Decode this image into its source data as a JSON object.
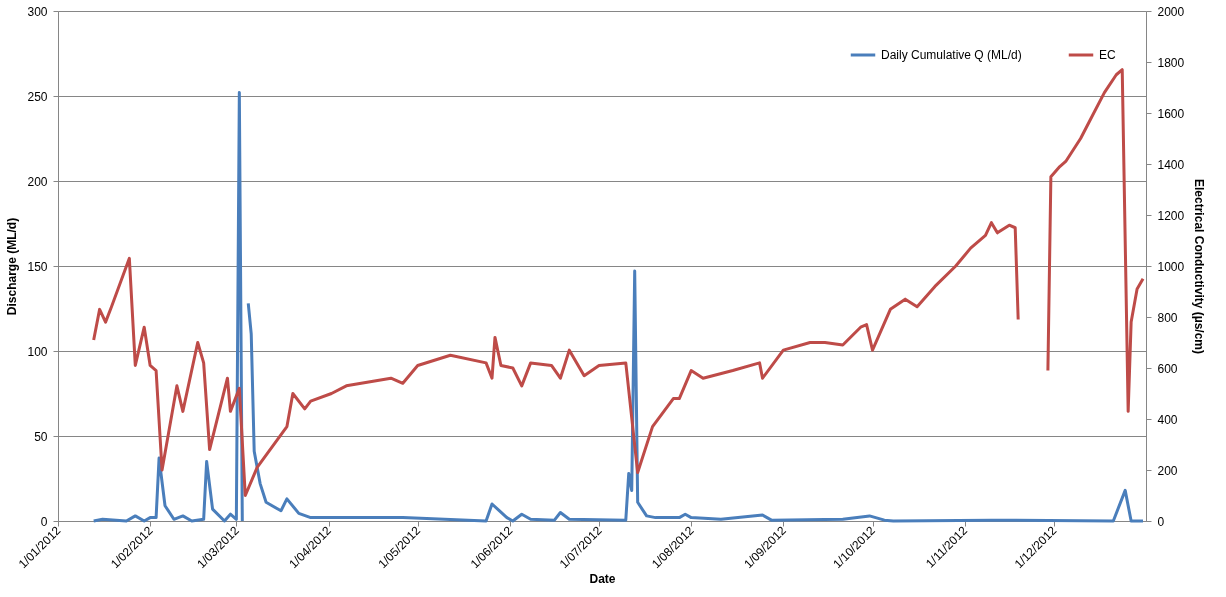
{
  "chart_data": {
    "type": "line",
    "xlabel": "Date",
    "ylabel": "Discharge (ML/d)",
    "y2label": "Electrical Conductivity (µs/cm)",
    "xlim": [
      "2012-01-01",
      "2013-01-01"
    ],
    "xticks": [
      {
        "value": "2012-01-01",
        "label": "1/01/2012"
      },
      {
        "value": "2012-02-01",
        "label": "1/02/2012"
      },
      {
        "value": "2012-03-01",
        "label": "1/03/2012"
      },
      {
        "value": "2012-04-01",
        "label": "1/04/2012"
      },
      {
        "value": "2012-05-01",
        "label": "1/05/2012"
      },
      {
        "value": "2012-06-01",
        "label": "1/06/2012"
      },
      {
        "value": "2012-07-01",
        "label": "1/07/2012"
      },
      {
        "value": "2012-08-01",
        "label": "1/08/2012"
      },
      {
        "value": "2012-09-01",
        "label": "1/09/2012"
      },
      {
        "value": "2012-10-01",
        "label": "1/10/2012"
      },
      {
        "value": "2012-11-01",
        "label": "1/11/2012"
      },
      {
        "value": "2012-12-01",
        "label": "1/12/2012"
      }
    ],
    "ylim": [
      0,
      300
    ],
    "yticks": [
      0,
      50,
      100,
      150,
      200,
      250,
      300
    ],
    "y2lim": [
      0,
      2000
    ],
    "y2ticks": [
      0,
      200,
      400,
      600,
      800,
      1000,
      1200,
      1400,
      1600,
      1800,
      2000
    ],
    "grid": "y",
    "legend": "top right",
    "series": [
      {
        "name": "Daily Cumulative Q (ML/d)",
        "color": "#4a7ebb",
        "x": [
          "2012-01-13",
          "2012-01-16",
          "2012-01-24",
          "2012-01-27",
          "2012-01-30",
          "2012-02-01",
          "2012-02-03",
          "2012-02-04",
          "2012-02-06",
          "2012-02-09",
          "2012-02-12",
          "2012-02-15",
          "2012-02-19",
          "2012-02-20",
          "2012-02-22",
          "2012-02-26",
          "2012-02-28",
          "2012-03-01",
          "2012-03-02",
          "2012-03-03",
          "2012-03-04",
          "2012-03-05",
          "2012-03-06",
          "2012-03-07",
          "2012-03-09",
          "2012-03-11",
          "2012-03-16",
          "2012-03-18",
          "2012-03-22",
          "2012-03-26",
          "2012-04-02",
          "2012-04-26",
          "2012-05-04",
          "2012-05-24",
          "2012-05-26",
          "2012-05-31",
          "2012-06-02",
          "2012-06-05",
          "2012-06-08",
          "2012-06-16",
          "2012-06-18",
          "2012-06-21",
          "2012-07-10",
          "2012-07-11",
          "2012-07-12",
          "2012-07-13",
          "2012-07-14",
          "2012-07-17",
          "2012-07-20",
          "2012-07-28",
          "2012-07-30",
          "2012-08-01",
          "2012-08-11",
          "2012-08-25",
          "2012-08-28",
          "2012-09-21",
          "2012-09-30",
          "2012-10-05",
          "2012-10-08",
          "2012-11-10",
          "2012-12-21",
          "2012-12-25",
          "2012-12-27",
          "2012-12-31"
        ],
        "values": [
          0,
          1,
          0,
          3,
          0,
          2,
          2,
          37,
          9,
          1,
          3,
          0,
          1,
          35,
          7,
          0,
          4,
          1,
          252,
          0,
          null,
          128,
          110,
          41,
          22,
          11,
          6,
          13,
          4.5,
          2,
          2,
          2,
          1.5,
          0,
          10,
          2,
          0,
          4,
          1,
          0.5,
          5,
          1,
          0.5,
          28,
          18,
          147,
          11,
          3,
          2,
          2,
          4,
          2,
          1,
          3.5,
          0.5,
          1,
          3,
          0.5,
          0,
          0.5,
          0,
          18,
          0,
          0
        ]
      },
      {
        "name": "EC",
        "color": "#be4b48",
        "axis": "y2",
        "x": [
          "2012-01-13",
          "2012-01-15",
          "2012-01-17",
          "2012-01-19",
          "2012-01-25",
          "2012-01-27",
          "2012-01-30",
          "2012-02-01",
          "2012-02-03",
          "2012-02-05",
          "2012-02-10",
          "2012-02-12",
          "2012-02-17",
          "2012-02-19",
          "2012-02-21",
          "2012-02-27",
          "2012-02-28",
          "2012-03-02",
          "2012-03-04",
          "2012-03-08",
          "2012-03-18",
          "2012-03-20",
          "2012-03-24",
          "2012-03-26",
          "2012-04-02",
          "2012-04-07",
          "2012-04-22",
          "2012-04-26",
          "2012-05-01",
          "2012-05-12",
          "2012-05-24",
          "2012-05-26",
          "2012-05-27",
          "2012-05-29",
          "2012-06-02",
          "2012-06-05",
          "2012-06-08",
          "2012-06-15",
          "2012-06-18",
          "2012-06-21",
          "2012-06-26",
          "2012-07-01",
          "2012-07-10",
          "2012-07-14",
          "2012-07-19",
          "2012-07-26",
          "2012-07-28",
          "2012-08-01",
          "2012-08-05",
          "2012-08-15",
          "2012-08-24",
          "2012-08-25",
          "2012-09-01",
          "2012-09-10",
          "2012-09-15",
          "2012-09-21",
          "2012-09-27",
          "2012-09-29",
          "2012-10-01",
          "2012-10-07",
          "2012-10-12",
          "2012-10-16",
          "2012-10-22",
          "2012-10-29",
          "2012-11-03",
          "2012-11-08",
          "2012-11-10",
          "2012-11-12",
          "2012-11-16",
          "2012-11-18",
          "2012-11-19",
          "2012-11-24",
          "2012-11-29",
          "2012-11-30",
          "2012-12-03",
          "2012-12-05",
          "2012-12-10",
          "2012-12-14",
          "2012-12-18",
          "2012-12-22",
          "2012-12-24",
          "2012-12-26",
          "2012-12-27",
          "2012-12-29",
          "2012-12-31"
        ],
        "values": [
          710,
          830,
          780,
          840,
          1030,
          610,
          760,
          610,
          590,
          200,
          530,
          430,
          700,
          620,
          280,
          560,
          430,
          520,
          100,
          210,
          370,
          500,
          440,
          470,
          500,
          530,
          560,
          540,
          610,
          650,
          620,
          560,
          720,
          610,
          600,
          530,
          620,
          610,
          560,
          670,
          570,
          610,
          620,
          190,
          370,
          480,
          480,
          590,
          560,
          590,
          620,
          560,
          670,
          700,
          700,
          690,
          760,
          770,
          670,
          830,
          870,
          840,
          920,
          1000,
          1070,
          1120,
          1170,
          1130,
          1160,
          1150,
          790,
          null,
          590,
          1350,
          1390,
          1410,
          1500,
          1590,
          1680,
          1750,
          1770,
          430,
          780,
          910,
          950
        ]
      }
    ]
  }
}
